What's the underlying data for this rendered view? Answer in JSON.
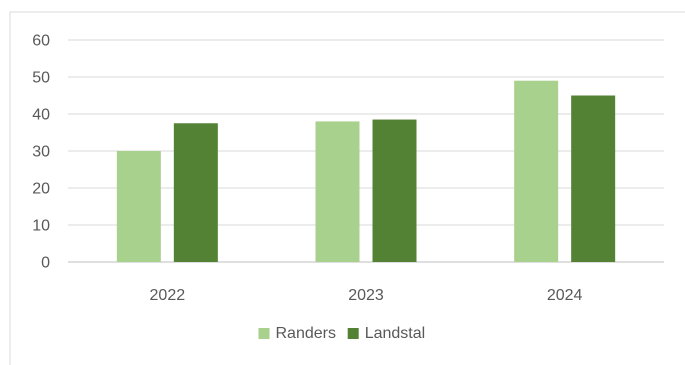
{
  "chart_data": {
    "type": "bar",
    "categories": [
      "2022",
      "2023",
      "2024"
    ],
    "series": [
      {
        "name": "Randers",
        "values": [
          30,
          38,
          49
        ],
        "color": "#a9d18e"
      },
      {
        "name": "Landstal",
        "values": [
          37.5,
          38.5,
          45
        ],
        "color": "#548235"
      }
    ],
    "y_ticks": [
      "0",
      "10",
      "20",
      "30",
      "40",
      "50",
      "60"
    ],
    "ylim": [
      0,
      60
    ],
    "grid": true,
    "legend_position": "bottom",
    "title": "",
    "xlabel": "",
    "ylabel": ""
  },
  "colors": {
    "grid": "#d9d9d9",
    "axis": "#bfbfbf",
    "text": "#595959",
    "frame": "#d9d9d9"
  }
}
